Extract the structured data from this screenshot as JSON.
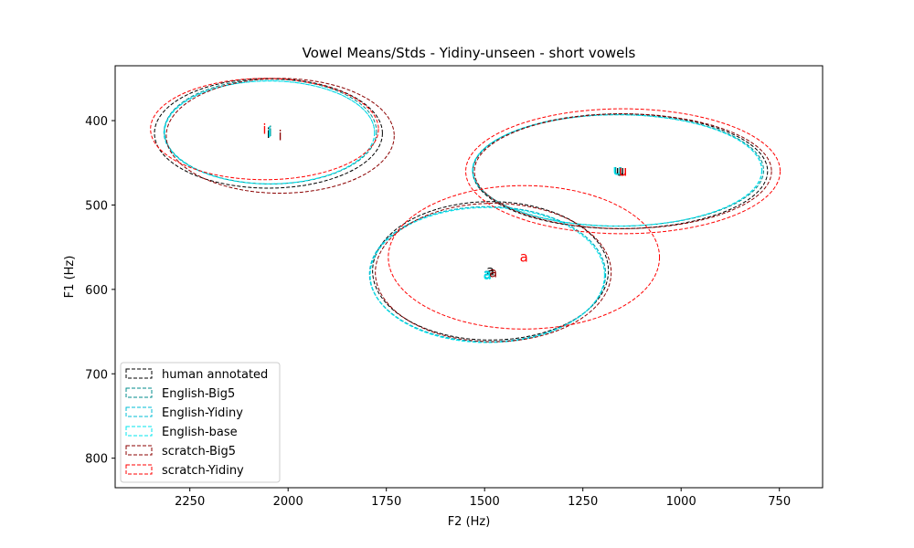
{
  "chart_data": {
    "type": "scatter",
    "title": "Vowel Means/Stds - Yidiny-unseen - short vowels",
    "xlabel": "F2 (Hz)",
    "ylabel": "F1 (Hz)",
    "xlim": [
      2440,
      640
    ],
    "ylim": [
      835,
      335
    ],
    "x_ticks": [
      2250,
      2000,
      1750,
      1500,
      1250,
      1000,
      750
    ],
    "y_ticks": [
      400,
      500,
      600,
      700,
      800
    ],
    "legend_position": "lower-left",
    "series": [
      {
        "name": "human annotated",
        "color": "#000000",
        "points": [
          {
            "vowel": "i",
            "f2": 2050,
            "f1": 415,
            "std_f2": 290,
            "std_f1": 65
          },
          {
            "vowel": "u",
            "f2": 1155,
            "f1": 460,
            "std_f2": 375,
            "std_f1": 68
          },
          {
            "vowel": "a",
            "f2": 1485,
            "f1": 578,
            "std_f2": 300,
            "std_f1": 82
          }
        ]
      },
      {
        "name": "English-Big5",
        "color": "#008b8b",
        "points": [
          {
            "vowel": "i",
            "f2": 2045,
            "f1": 413,
            "std_f2": 270,
            "std_f1": 62
          },
          {
            "vowel": "u",
            "f2": 1160,
            "f1": 459,
            "std_f2": 370,
            "std_f1": 66
          },
          {
            "vowel": "a",
            "f2": 1492,
            "f1": 582,
            "std_f2": 300,
            "std_f1": 80
          }
        ]
      },
      {
        "name": "English-Yidiny",
        "color": "#00bcd4",
        "points": [
          {
            "vowel": "i",
            "f2": 2048,
            "f1": 414,
            "std_f2": 268,
            "std_f1": 61
          },
          {
            "vowel": "u",
            "f2": 1162,
            "f1": 459,
            "std_f2": 368,
            "std_f1": 66
          },
          {
            "vowel": "a",
            "f2": 1493,
            "f1": 582,
            "std_f2": 300,
            "std_f1": 80
          }
        ]
      },
      {
        "name": "English-base",
        "color": "#00e5ee",
        "points": [
          {
            "vowel": "i",
            "f2": 2047,
            "f1": 414,
            "std_f2": 267,
            "std_f1": 61
          },
          {
            "vowel": "u",
            "f2": 1163,
            "f1": 459,
            "std_f2": 368,
            "std_f1": 66
          },
          {
            "vowel": "a",
            "f2": 1493,
            "f1": 583,
            "std_f2": 298,
            "std_f1": 80
          }
        ]
      },
      {
        "name": "scratch-Big5",
        "color": "#8b0000",
        "points": [
          {
            "vowel": "i",
            "f2": 2020,
            "f1": 418,
            "std_f2": 290,
            "std_f1": 68
          },
          {
            "vowel": "u",
            "f2": 1148,
            "f1": 460,
            "std_f2": 378,
            "std_f1": 68
          },
          {
            "vowel": "a",
            "f2": 1478,
            "f1": 580,
            "std_f2": 300,
            "std_f1": 82
          }
        ]
      },
      {
        "name": "scratch-Yidiny",
        "color": "#ff0000",
        "points": [
          {
            "vowel": "i",
            "f2": 2060,
            "f1": 410,
            "std_f2": 290,
            "std_f1": 60
          },
          {
            "vowel": "u",
            "f2": 1148,
            "f1": 460,
            "std_f2": 400,
            "std_f1": 74
          },
          {
            "vowel": "a",
            "f2": 1400,
            "f1": 562,
            "std_f2": 345,
            "std_f1": 85
          }
        ]
      }
    ]
  }
}
